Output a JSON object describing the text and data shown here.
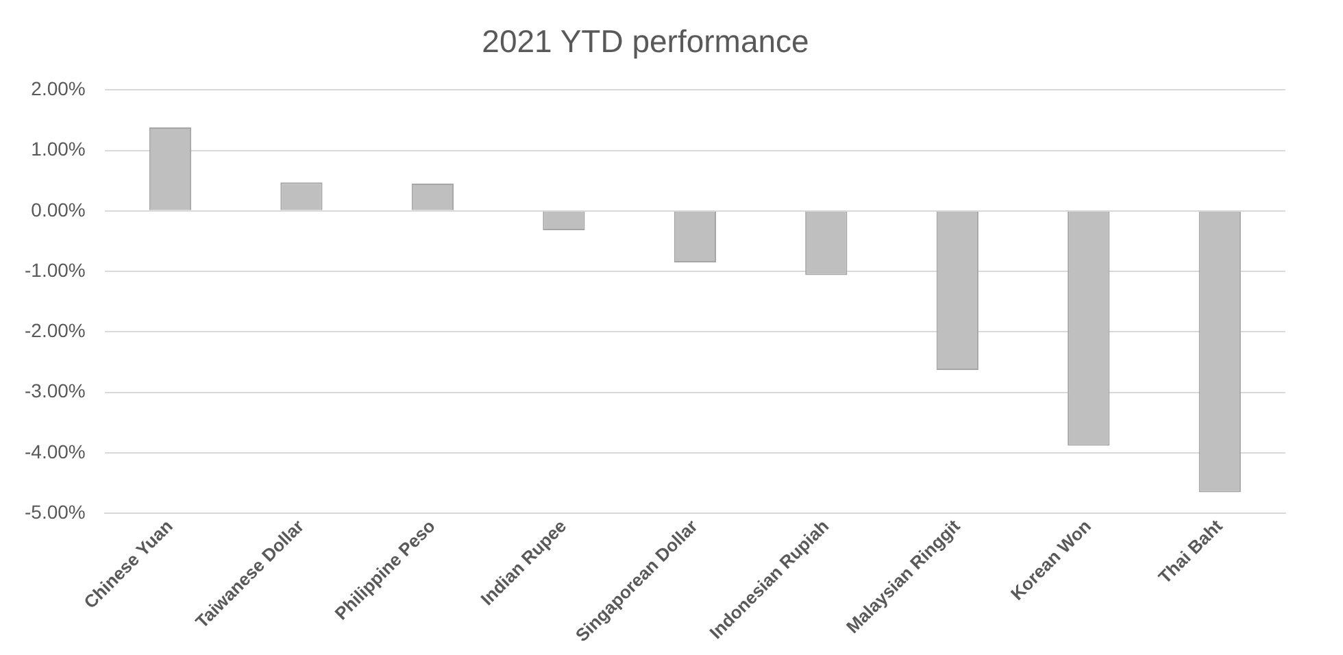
{
  "chart_data": {
    "type": "bar",
    "title": "2021 YTD performance",
    "categories": [
      "Chinese Yuan",
      "Taiwanese Dollar",
      "Philippine Peso",
      "Indian Rupee",
      "Singaporean Dollar",
      "Indonesian Rupiah",
      "Malaysian Ringgit",
      "Korean Won",
      "Thai Baht"
    ],
    "values": [
      1.38,
      0.47,
      0.45,
      -0.32,
      -0.85,
      -1.06,
      -2.63,
      -3.88,
      -4.65
    ],
    "color": "#bfbfbf",
    "ylim": [
      -5,
      2
    ],
    "yticks": [
      {
        "value": 2,
        "label": "2.00%"
      },
      {
        "value": 1,
        "label": "1.00%"
      },
      {
        "value": 0,
        "label": "0.00%"
      },
      {
        "value": -1,
        "label": "-1.00%"
      },
      {
        "value": -2,
        "label": "-2.00%"
      },
      {
        "value": -3,
        "label": "-3.00%"
      },
      {
        "value": -4,
        "label": "-4.00%"
      },
      {
        "value": -5,
        "label": "-5.00%"
      }
    ],
    "grid": "y",
    "legend": false
  }
}
